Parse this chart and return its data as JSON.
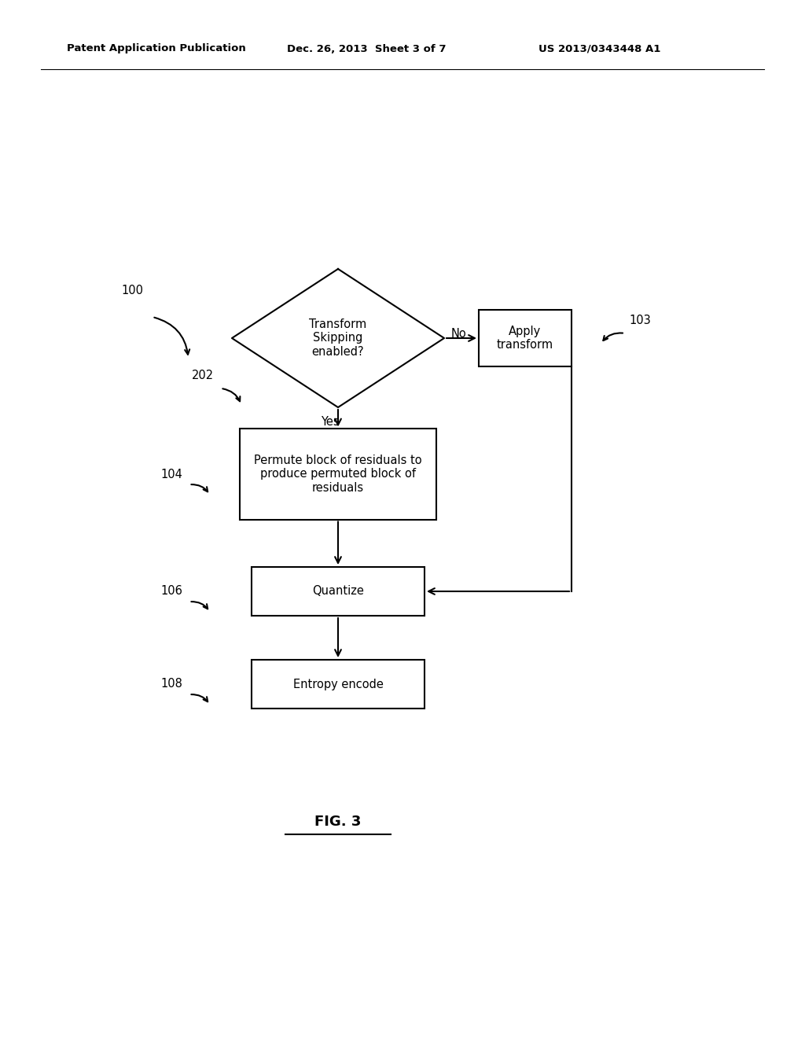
{
  "bg_color": "#ffffff",
  "text_color": "#000000",
  "header_left": "Patent Application Publication",
  "header_mid": "Dec. 26, 2013  Sheet 3 of 7",
  "header_right": "US 2013/0343448 A1",
  "figure_label": "FIG. 3",
  "label_100": "100",
  "label_202": "202",
  "label_103": "103",
  "label_104": "104",
  "label_106": "106",
  "label_108": "108",
  "diamond_text": "Transform\nSkipping\nenabled?",
  "box_apply_text": "Apply\ntransform",
  "box_permute_text": "Permute block of residuals to\nproduce permuted block of\nresiduals",
  "box_quantize_text": "Quantize",
  "box_entropy_text": "Entropy encode",
  "yes_label": "Yes",
  "no_label": "No",
  "line_width": 1.5,
  "font_size_main": 10.5,
  "font_size_header": 9.5,
  "font_size_label": 10.5,
  "font_size_fig": 13
}
